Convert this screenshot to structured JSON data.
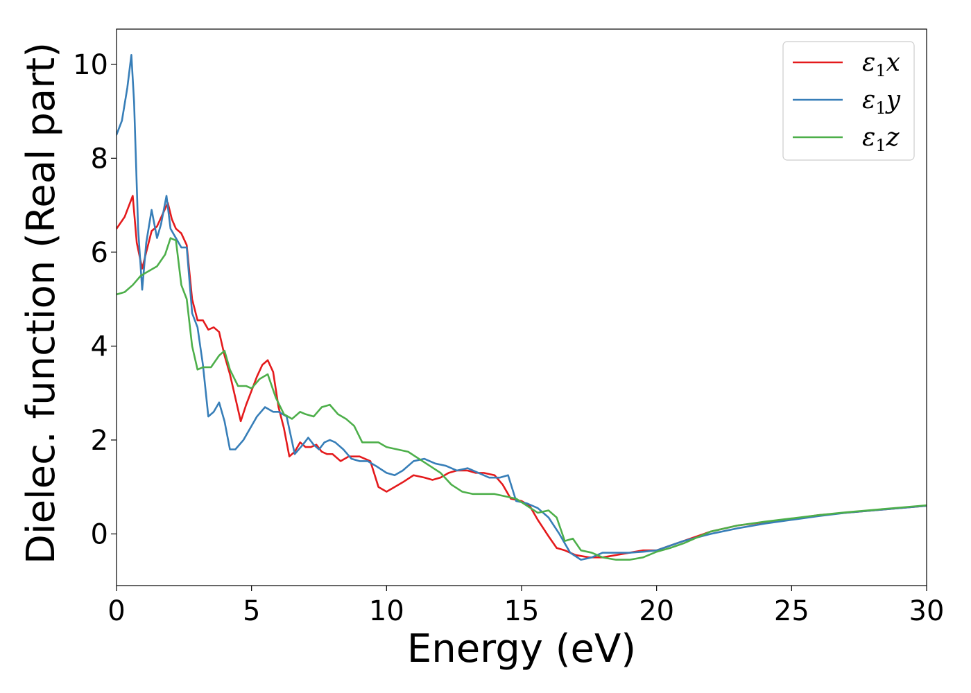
{
  "chart_data": {
    "type": "line",
    "title": "",
    "xlabel": "Energy (eV)",
    "ylabel": "Dielec. function (Real part)",
    "xlim": [
      0,
      30
    ],
    "ylim": [
      -1.1,
      10.75
    ],
    "xticks": [
      0,
      5,
      10,
      15,
      20,
      25,
      30
    ],
    "yticks": [
      0,
      2,
      4,
      6,
      8,
      10
    ],
    "grid": false,
    "legend_position": "top-right",
    "series": [
      {
        "name": "ε1x",
        "legend_base": "ε",
        "legend_sub": "1",
        "legend_axis": "x",
        "color": "#e41a1c",
        "x": [
          0,
          0.3,
          0.6,
          0.75,
          0.95,
          1.1,
          1.3,
          1.5,
          1.7,
          1.9,
          2.05,
          2.2,
          2.4,
          2.6,
          2.8,
          3.0,
          3.2,
          3.4,
          3.6,
          3.8,
          4.0,
          4.2,
          4.4,
          4.6,
          4.8,
          5.0,
          5.2,
          5.4,
          5.6,
          5.8,
          6.0,
          6.2,
          6.4,
          6.6,
          6.8,
          7.0,
          7.2,
          7.4,
          7.6,
          7.8,
          8.0,
          8.3,
          8.6,
          9.0,
          9.4,
          9.7,
          10.0,
          10.3,
          10.6,
          11.0,
          11.4,
          11.7,
          12.0,
          12.3,
          12.6,
          13.0,
          13.3,
          13.6,
          14.0,
          14.3,
          14.6,
          15.0,
          15.3,
          15.6,
          16.0,
          16.3,
          16.6,
          17.0,
          17.5,
          18.0,
          18.5,
          19.0,
          19.5,
          20.0,
          20.5,
          21.0,
          22.0,
          23.0,
          24.0,
          25.0,
          26.0,
          27.0,
          28.0,
          29.0,
          30.0
        ],
        "values": [
          6.5,
          6.75,
          7.2,
          6.2,
          5.65,
          6.0,
          6.45,
          6.55,
          6.8,
          7.05,
          6.7,
          6.5,
          6.4,
          6.15,
          5.0,
          4.55,
          4.55,
          4.35,
          4.4,
          4.3,
          3.8,
          3.4,
          2.9,
          2.4,
          2.75,
          3.05,
          3.35,
          3.6,
          3.7,
          3.45,
          2.7,
          2.25,
          1.65,
          1.75,
          1.95,
          1.85,
          1.85,
          1.9,
          1.75,
          1.7,
          1.7,
          1.55,
          1.65,
          1.65,
          1.55,
          1.0,
          0.9,
          1.0,
          1.1,
          1.25,
          1.2,
          1.15,
          1.2,
          1.3,
          1.35,
          1.35,
          1.3,
          1.3,
          1.25,
          1.05,
          0.75,
          0.7,
          0.6,
          0.3,
          -0.05,
          -0.3,
          -0.35,
          -0.45,
          -0.5,
          -0.5,
          -0.45,
          -0.4,
          -0.35,
          -0.35,
          -0.25,
          -0.15,
          0.05,
          0.18,
          0.25,
          0.32,
          0.4,
          0.45,
          0.5,
          0.55,
          0.6
        ]
      },
      {
        "name": "ε1y",
        "legend_base": "ε",
        "legend_sub": "1",
        "legend_axis": "y",
        "color": "#377eb8",
        "x": [
          0,
          0.2,
          0.4,
          0.55,
          0.65,
          0.8,
          0.95,
          1.1,
          1.3,
          1.5,
          1.65,
          1.85,
          2.0,
          2.2,
          2.4,
          2.6,
          2.8,
          3.0,
          3.2,
          3.4,
          3.6,
          3.8,
          4.0,
          4.2,
          4.4,
          4.7,
          5.0,
          5.2,
          5.5,
          5.8,
          6.0,
          6.3,
          6.6,
          6.9,
          7.1,
          7.3,
          7.5,
          7.7,
          7.9,
          8.1,
          8.4,
          8.7,
          9.0,
          9.3,
          9.6,
          10.0,
          10.3,
          10.6,
          11.0,
          11.4,
          11.8,
          12.2,
          12.6,
          13.0,
          13.4,
          13.8,
          14.2,
          14.5,
          14.8,
          15.2,
          15.6,
          16.0,
          16.4,
          16.8,
          17.2,
          17.6,
          18.0,
          18.5,
          19.0,
          19.5,
          20.0,
          20.5,
          21.0,
          22.0,
          23.0,
          24.0,
          25.0,
          26.0,
          27.0,
          28.0,
          29.0,
          30.0
        ],
        "values": [
          8.5,
          8.8,
          9.5,
          10.2,
          9.2,
          6.5,
          5.2,
          6.2,
          6.9,
          6.3,
          6.6,
          7.2,
          6.5,
          6.3,
          6.1,
          6.1,
          4.7,
          4.4,
          3.6,
          2.5,
          2.6,
          2.8,
          2.4,
          1.8,
          1.8,
          2.0,
          2.3,
          2.5,
          2.7,
          2.6,
          2.6,
          2.5,
          1.7,
          1.9,
          2.05,
          1.9,
          1.8,
          1.95,
          2.0,
          1.95,
          1.8,
          1.6,
          1.55,
          1.55,
          1.45,
          1.3,
          1.25,
          1.35,
          1.55,
          1.6,
          1.5,
          1.45,
          1.35,
          1.4,
          1.3,
          1.2,
          1.2,
          1.25,
          0.7,
          0.65,
          0.55,
          0.35,
          0.0,
          -0.4,
          -0.55,
          -0.5,
          -0.4,
          -0.4,
          -0.4,
          -0.38,
          -0.35,
          -0.25,
          -0.15,
          0.0,
          0.12,
          0.22,
          0.3,
          0.38,
          0.45,
          0.5,
          0.55,
          0.6
        ]
      },
      {
        "name": "ε1z",
        "legend_base": "ε",
        "legend_sub": "1",
        "legend_axis": "z",
        "color": "#4daf4a",
        "x": [
          0,
          0.3,
          0.6,
          0.9,
          1.2,
          1.5,
          1.8,
          2.0,
          2.2,
          2.4,
          2.6,
          2.8,
          3.0,
          3.2,
          3.5,
          3.8,
          4.0,
          4.2,
          4.5,
          4.8,
          5.0,
          5.3,
          5.6,
          5.9,
          6.2,
          6.5,
          6.8,
          7.0,
          7.3,
          7.6,
          7.9,
          8.2,
          8.5,
          8.8,
          9.1,
          9.4,
          9.7,
          10.0,
          10.4,
          10.8,
          11.2,
          11.6,
          12.0,
          12.4,
          12.8,
          13.2,
          13.6,
          14.0,
          14.4,
          14.8,
          15.2,
          15.6,
          16.0,
          16.3,
          16.6,
          16.9,
          17.2,
          17.6,
          18.0,
          18.5,
          19.0,
          19.5,
          20.0,
          20.5,
          21.0,
          22.0,
          23.0,
          24.0,
          25.0,
          26.0,
          27.0,
          28.0,
          29.0,
          30.0
        ],
        "values": [
          5.1,
          5.15,
          5.3,
          5.5,
          5.6,
          5.7,
          5.95,
          6.3,
          6.25,
          5.3,
          5.0,
          4.0,
          3.5,
          3.55,
          3.55,
          3.8,
          3.9,
          3.5,
          3.15,
          3.15,
          3.1,
          3.3,
          3.4,
          2.9,
          2.55,
          2.45,
          2.6,
          2.55,
          2.5,
          2.7,
          2.75,
          2.55,
          2.45,
          2.3,
          1.95,
          1.95,
          1.95,
          1.85,
          1.8,
          1.75,
          1.6,
          1.45,
          1.3,
          1.05,
          0.9,
          0.85,
          0.85,
          0.85,
          0.8,
          0.75,
          0.6,
          0.45,
          0.5,
          0.35,
          -0.15,
          -0.1,
          -0.35,
          -0.4,
          -0.5,
          -0.55,
          -0.55,
          -0.5,
          -0.38,
          -0.3,
          -0.2,
          0.05,
          0.18,
          0.26,
          0.33,
          0.4,
          0.46,
          0.51,
          0.56,
          0.61
        ]
      }
    ]
  }
}
